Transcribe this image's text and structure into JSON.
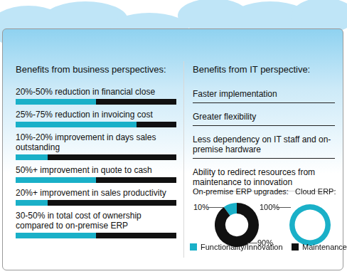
{
  "business": {
    "title": "Benefits from business perspectives:",
    "xlim": [
      0,
      100
    ],
    "items": [
      {
        "text": "20%-50% reduction in financial close",
        "value": 50
      },
      {
        "text": "25%-75% reduction in invoicing cost",
        "value": 75
      },
      {
        "text": "10%-20% improvement in days sales outstanding",
        "value": 20
      },
      {
        "text": "50%+ improvement in quote to cash",
        "value": 50
      },
      {
        "text": "20%+ improvement in sales productivity",
        "value": 20
      },
      {
        "text": "30-50% in total cost of ownership compared to on-premise ERP",
        "value": 50
      }
    ]
  },
  "it": {
    "title": "Benefits from IT perspective:",
    "items": [
      "Faster implementation",
      "Greater flexibility",
      "Less dependency on IT staff and on-premise hardware",
      "Ability to redirect resources from maintenance to innovation"
    ]
  },
  "chart_data": [
    {
      "type": "doughnut",
      "title": "On-premise ERP upgrades:",
      "series": [
        {
          "name": "Functionality/Innovation",
          "color": "#1ab0c8"
        },
        {
          "name": "Maintenance",
          "color": "#111111"
        }
      ],
      "values": [
        10,
        90
      ],
      "value_labels": [
        "10%",
        "90%"
      ],
      "data_labels": true
    },
    {
      "type": "doughnut",
      "title": "Cloud ERP:",
      "series": [
        {
          "name": "Functionality/Innovation",
          "color": "#1ab0c8"
        },
        {
          "name": "Maintenance",
          "color": "#111111"
        }
      ],
      "values": [
        100,
        0
      ],
      "value_labels": [
        "100%",
        null
      ],
      "data_labels": true
    }
  ]
}
